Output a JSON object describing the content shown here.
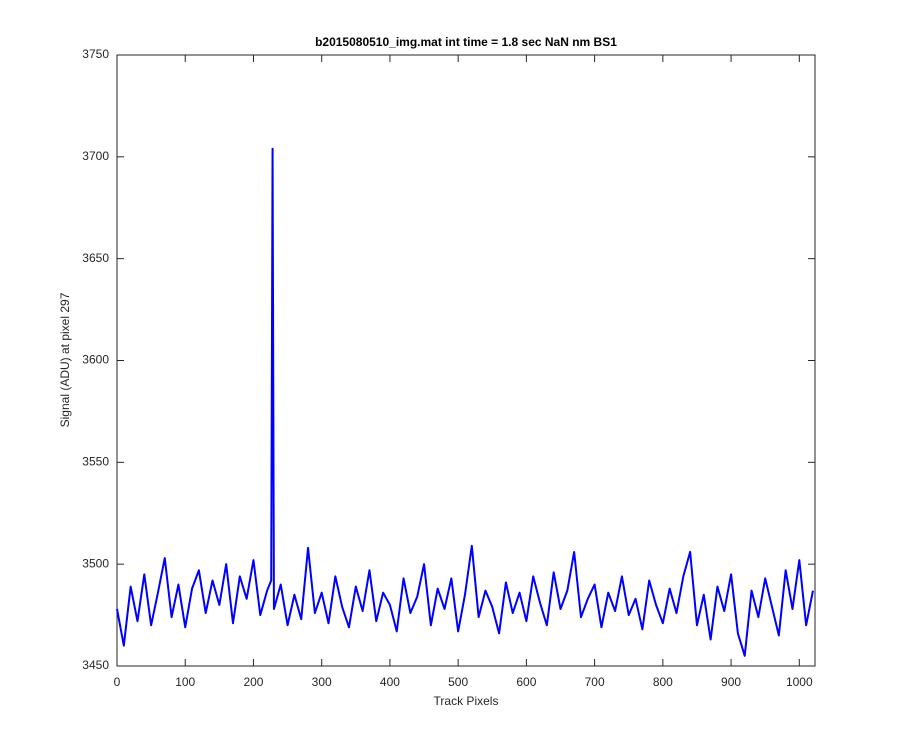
{
  "chart_data": {
    "type": "line",
    "title": "b2015080510_img.mat int time = 1.8 sec  NaN nm BS1",
    "x_label": "Track Pixels",
    "y_label": "Signal (ADU) at pixel 297",
    "x": [
      0,
      10,
      20,
      30,
      40,
      50,
      60,
      70,
      80,
      90,
      100,
      110,
      120,
      130,
      140,
      150,
      160,
      170,
      180,
      190,
      200,
      210,
      220,
      226,
      228,
      230,
      240,
      250,
      260,
      270,
      280,
      290,
      300,
      310,
      320,
      330,
      340,
      350,
      360,
      370,
      380,
      390,
      400,
      410,
      420,
      430,
      440,
      450,
      460,
      470,
      480,
      490,
      500,
      510,
      520,
      530,
      540,
      550,
      560,
      570,
      580,
      590,
      600,
      610,
      620,
      630,
      640,
      650,
      660,
      670,
      680,
      690,
      700,
      710,
      720,
      730,
      740,
      750,
      760,
      770,
      780,
      790,
      800,
      810,
      820,
      830,
      840,
      850,
      860,
      870,
      880,
      890,
      900,
      910,
      920,
      930,
      940,
      950,
      960,
      970,
      980,
      990,
      1000,
      1010,
      1020
    ],
    "series": [
      {
        "name": "signal",
        "color": "#0000ff",
        "values": [
          3478,
          3460,
          3489,
          3472,
          3495,
          3470,
          3486,
          3503,
          3474,
          3490,
          3469,
          3488,
          3497,
          3476,
          3492,
          3480,
          3500,
          3471,
          3494,
          3483,
          3502,
          3475,
          3487,
          3492,
          3704,
          3478,
          3490,
          3470,
          3485,
          3473,
          3508,
          3476,
          3486,
          3471,
          3494,
          3479,
          3469,
          3489,
          3477,
          3497,
          3472,
          3486,
          3480,
          3467,
          3493,
          3476,
          3484,
          3500,
          3470,
          3488,
          3478,
          3493,
          3467,
          3485,
          3509,
          3474,
          3487,
          3479,
          3466,
          3491,
          3476,
          3486,
          3472,
          3494,
          3481,
          3470,
          3496,
          3478,
          3487,
          3506,
          3474,
          3483,
          3490,
          3469,
          3486,
          3477,
          3494,
          3475,
          3483,
          3468,
          3492,
          3480,
          3471,
          3488,
          3476,
          3494,
          3506,
          3470,
          3485,
          3463,
          3489,
          3477,
          3495,
          3466,
          3455,
          3487,
          3474,
          3493,
          3479,
          3465,
          3497,
          3478,
          3502,
          3470,
          3487
        ]
      }
    ],
    "xlim": [
      0,
      1023
    ],
    "xticks": [
      0,
      100,
      200,
      300,
      400,
      500,
      600,
      700,
      800,
      900,
      1000
    ],
    "ylim": [
      3450,
      3750
    ],
    "yticks": [
      3450,
      3500,
      3550,
      3600,
      3650,
      3700,
      3750
    ]
  }
}
